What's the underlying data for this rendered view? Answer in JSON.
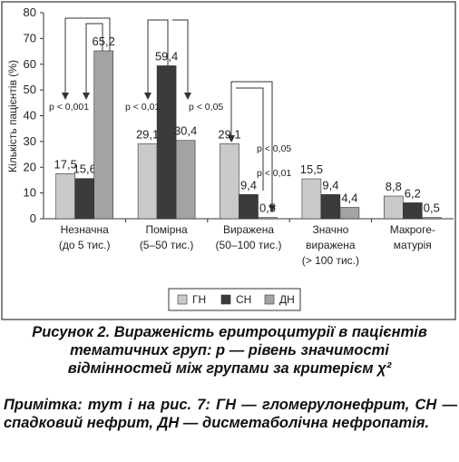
{
  "chart_data": {
    "type": "bar",
    "y_label": "Кількість пацієнтів (%)",
    "categories": [
      [
        "Незначна",
        "(до 5 тис.)"
      ],
      [
        "Помірна",
        "(5–50 тис.)"
      ],
      [
        "Виражена",
        "(50–100 тис.)"
      ],
      [
        "Значно",
        "виражена",
        "(> 100 тис.)"
      ],
      [
        "Макроге-",
        "матурія"
      ]
    ],
    "series": [
      {
        "name": "ГН",
        "color": "#c9c9c9",
        "values": [
          17.5,
          29.1,
          29.1,
          15.5,
          8.8
        ],
        "value_labels": [
          "17,5",
          "29,1",
          "29,1",
          "15,5",
          "8,8"
        ]
      },
      {
        "name": "СН",
        "color": "#3b3b3b",
        "values": [
          15.6,
          59.4,
          9.4,
          9.4,
          6.2
        ],
        "value_labels": [
          "15,6",
          "59,4",
          "9,4",
          "9,4",
          "6,2"
        ]
      },
      {
        "name": "ДН",
        "color": "#a3a3a3",
        "values": [
          65.2,
          30.4,
          0.5,
          4.4,
          0.5
        ],
        "value_labels": [
          "65,2",
          "30,4",
          "0,5",
          "4,4",
          "0,5"
        ]
      }
    ],
    "ylim": [
      0,
      80
    ],
    "yticks": [
      0,
      10,
      20,
      30,
      40,
      50,
      60,
      70,
      80
    ],
    "grid": false,
    "annotations": [
      "p < 0,001",
      "p < 0,01",
      "p < 0,05",
      "p < 0,05",
      "p < 0,01"
    ]
  },
  "caption": {
    "title": "Рисунок 2. Вираженість еритроцитурії в пацієнтів тематичних груп: р — рівень значимості відмінностей між групами за критерієм χ²",
    "note": "Примітка: тут і на рис. 7: ГН — гломерулонефрит, СН — спадковий нефрит, ДН — дисметаболічна нефропатія."
  }
}
